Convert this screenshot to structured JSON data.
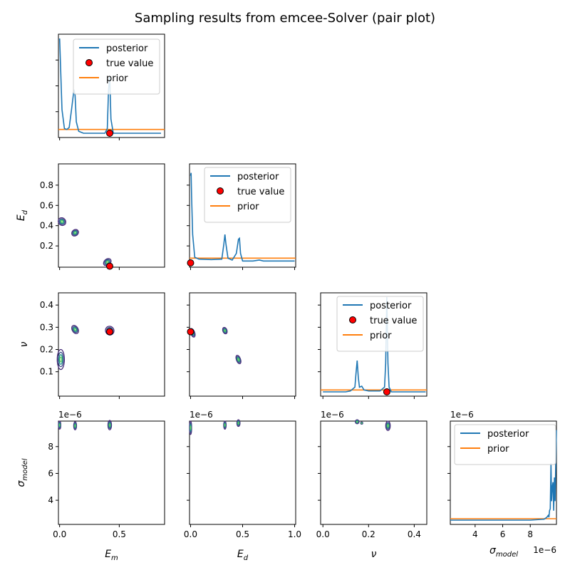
{
  "chart_data": {
    "type": "pair-plot",
    "title": "Sampling results from emcee-Solver (pair plot)",
    "parameters": [
      {
        "key": "Em",
        "label": "E",
        "sub": "m",
        "range": [
          -0.01,
          0.88
        ]
      },
      {
        "key": "Ed",
        "label": "E",
        "sub": "d",
        "range": [
          -0.01,
          1.01
        ]
      },
      {
        "key": "nu",
        "label": "ν",
        "sub": "",
        "range": [
          -0.01,
          0.455
        ]
      },
      {
        "key": "sigma",
        "label": "σ",
        "sub": "model",
        "range": [
          2.2e-06,
          9.9e-06
        ]
      }
    ],
    "true_values": {
      "Em": 0.42,
      "Ed": 0.0,
      "nu": 0.28
    },
    "ticks": {
      "Em": {
        "values": [
          0.0,
          0.5
        ],
        "labels": [
          "0.0",
          "0.5"
        ]
      },
      "Ed_x": {
        "values": [
          0.0,
          0.5,
          1.0
        ],
        "labels": [
          "0.0",
          "0.5",
          "1.0"
        ]
      },
      "Ed_y": {
        "values": [
          0.2,
          0.4,
          0.6,
          0.8
        ],
        "labels": [
          "0.2",
          "0.4",
          "0.6",
          "0.8"
        ]
      },
      "nu_x": {
        "values": [
          0.0,
          0.2,
          0.4
        ],
        "labels": [
          "0.0",
          "0.2",
          "0.4"
        ]
      },
      "nu_y": {
        "values": [
          0.1,
          0.2,
          0.3,
          0.4
        ],
        "labels": [
          "0.1",
          "0.2",
          "0.3",
          "0.4"
        ]
      },
      "sigma": {
        "values": [
          4e-06,
          6e-06,
          8e-06
        ],
        "labels": [
          "4",
          "6",
          "8"
        ]
      }
    },
    "sci_notation": "1e−6",
    "legend": {
      "posterior": "posterior",
      "true_value": "true value",
      "prior": "prior"
    },
    "colors": {
      "posterior": "#1f77b4",
      "prior": "#ff7f0e",
      "true_value": "#ff0000",
      "contour_outer": "#472c7a",
      "contour_mid": "#3b528b",
      "contour_inner": "#21918c",
      "contour_core": "#5ec962"
    },
    "marginals": {
      "Em": {
        "x": [
          0.0,
          0.02,
          0.04,
          0.06,
          0.08,
          0.1,
          0.12,
          0.13,
          0.14,
          0.16,
          0.2,
          0.3,
          0.38,
          0.4,
          0.41,
          0.42,
          0.43,
          0.45,
          0.5,
          0.6,
          0.7,
          0.8,
          0.85
        ],
        "y": [
          1.0,
          0.25,
          0.05,
          0.04,
          0.06,
          0.25,
          0.46,
          0.4,
          0.12,
          0.02,
          0.0,
          0.0,
          0.0,
          0.05,
          0.45,
          0.6,
          0.15,
          0.0,
          0.0,
          0.0,
          0.0,
          0.0,
          0.0
        ],
        "prior": 0.04,
        "ymax": 1.0
      },
      "Ed": {
        "x": [
          0.0,
          0.005,
          0.01,
          0.02,
          0.04,
          0.08,
          0.2,
          0.3,
          0.32,
          0.33,
          0.34,
          0.36,
          0.4,
          0.44,
          0.46,
          0.47,
          0.48,
          0.5,
          0.6,
          0.66,
          0.7,
          0.8,
          0.9,
          1.0
        ],
        "y": [
          0.92,
          0.95,
          0.7,
          0.3,
          0.06,
          0.04,
          0.035,
          0.04,
          0.2,
          0.3,
          0.2,
          0.05,
          0.03,
          0.1,
          0.25,
          0.26,
          0.1,
          0.02,
          0.02,
          0.03,
          0.02,
          0.02,
          0.02,
          0.02
        ],
        "prior": 0.05,
        "ymax": 1.0
      },
      "nu": {
        "x": [
          0.0,
          0.05,
          0.1,
          0.12,
          0.14,
          0.145,
          0.15,
          0.155,
          0.16,
          0.17,
          0.18,
          0.2,
          0.25,
          0.27,
          0.275,
          0.28,
          0.285,
          0.29,
          0.3,
          0.35,
          0.4,
          0.45
        ],
        "y": [
          0.0,
          0.0,
          0.0,
          0.01,
          0.05,
          0.2,
          0.33,
          0.15,
          0.05,
          0.06,
          0.02,
          0.01,
          0.01,
          0.05,
          0.3,
          1.0,
          0.3,
          0.05,
          0.0,
          0.0,
          0.0,
          0.0
        ],
        "prior": 0.02,
        "ymax": 1.0
      },
      "sigma": {
        "x": [
          2.2e-06,
          4e-06,
          6e-06,
          8e-06,
          9e-06,
          9.2e-06,
          9.3e-06,
          9.35e-06,
          9.4e-06,
          9.45e-06,
          9.5e-06,
          9.55e-06,
          9.6e-06,
          9.65e-06,
          9.7e-06,
          9.75e-06,
          9.8e-06,
          9.85e-06,
          9.9e-06
        ],
        "y": [
          0.0,
          0.0,
          0.0,
          0.0,
          0.01,
          0.03,
          0.05,
          0.03,
          0.1,
          0.12,
          0.6,
          0.2,
          0.35,
          0.4,
          0.1,
          0.45,
          0.2,
          0.6,
          0.95
        ],
        "prior": 0.015,
        "ymax": 1.0
      }
    },
    "joint": {
      "Ed_Em": [
        {
          "cx": 0.02,
          "cy": 0.44,
          "rx": 0.03,
          "ry": 0.04,
          "rot": 40
        },
        {
          "cx": 0.13,
          "cy": 0.33,
          "rx": 0.03,
          "ry": 0.03,
          "rot": 40
        },
        {
          "cx": 0.4,
          "cy": 0.04,
          "rx": 0.035,
          "ry": 0.03,
          "rot": 40
        }
      ],
      "nu_Em": [
        {
          "cx": 0.01,
          "cy": 0.155,
          "rx": 0.03,
          "ry": 0.045,
          "rot": 0
        },
        {
          "cx": 0.13,
          "cy": 0.29,
          "rx": 0.025,
          "ry": 0.02,
          "rot": 30
        },
        {
          "cx": 0.42,
          "cy": 0.285,
          "rx": 0.035,
          "ry": 0.02,
          "rot": 30
        }
      ],
      "nu_Ed": [
        {
          "cx": 0.02,
          "cy": 0.275,
          "rx": 0.02,
          "ry": 0.02,
          "rot": 20
        },
        {
          "cx": 0.33,
          "cy": 0.285,
          "rx": 0.02,
          "ry": 0.015,
          "rot": 20
        },
        {
          "cx": 0.46,
          "cy": 0.155,
          "rx": 0.02,
          "ry": 0.02,
          "rot": 20
        }
      ],
      "sigma_Em": [
        {
          "cx": 0.0,
          "cy": 9.6e-06,
          "rx": 0.01,
          "ry": 3e-07,
          "rot": 0
        },
        {
          "cx": 0.13,
          "cy": 9.55e-06,
          "rx": 0.012,
          "ry": 3e-07,
          "rot": 0
        },
        {
          "cx": 0.42,
          "cy": 9.6e-06,
          "rx": 0.015,
          "ry": 3.5e-07,
          "rot": 0
        }
      ],
      "sigma_Ed": [
        {
          "cx": 0.0,
          "cy": 9.4e-06,
          "rx": 0.01,
          "ry": 5e-07,
          "rot": 0
        },
        {
          "cx": 0.33,
          "cy": 9.6e-06,
          "rx": 0.012,
          "ry": 3e-07,
          "rot": 0
        },
        {
          "cx": 0.46,
          "cy": 9.75e-06,
          "rx": 0.015,
          "ry": 2.5e-07,
          "rot": 0
        }
      ],
      "sigma_nu": [
        {
          "cx": 0.15,
          "cy": 9.85e-06,
          "rx": 0.008,
          "ry": 1.5e-07,
          "rot": 0
        },
        {
          "cx": 0.285,
          "cy": 9.55e-06,
          "rx": 0.01,
          "ry": 3.5e-07,
          "rot": 0
        },
        {
          "cx": 0.17,
          "cy": 9.75e-06,
          "rx": 0.002,
          "ry": 5e-08,
          "rot": 0
        }
      ]
    }
  }
}
